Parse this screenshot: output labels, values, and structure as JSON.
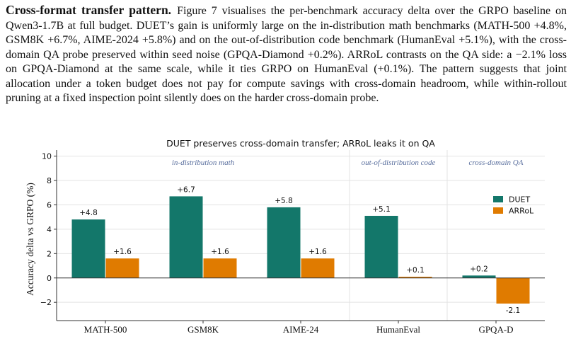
{
  "paragraph": {
    "heading": "Cross-format transfer pattern.",
    "body": "Figure 7 visualises the per-benchmark accuracy delta over the GRPO baseline on Qwen3-1.7B at full budget. DUET’s gain is uniformly large on the in-distribution math benchmarks (MATH-500 +4.8%, GSM8K +6.7%, AIME-2024 +5.8%) and on the out-of-distribution code benchmark (HumanEval +5.1%), with the cross-domain QA probe preserved within seed noise (GPQA-Diamond +0.2%). ARRoL contrasts on the QA side: a −2.1% loss on GPQA-Diamond at the same scale, while it ties GRPO on HumanEval (+0.1%). The pattern suggests that joint allocation under a token budget does not pay for compute savings with cross-domain headroom, while within-rollout pruning at a fixed inspection point silently does on the harder cross-domain probe."
  },
  "colors": {
    "duet": "#13776a",
    "arrol": "#e07b00",
    "region_label": "#5a6f9e"
  },
  "chart_data": {
    "type": "bar",
    "title": "DUET preserves cross-domain transfer; ARRoL leaks it on QA",
    "xlabel": "",
    "ylabel": "Accuracy delta vs GRPO (%)",
    "categories": [
      "MATH-500",
      "GSM8K",
      "AIME-24",
      "HumanEval",
      "GPQA-D"
    ],
    "series": [
      {
        "name": "DUET",
        "values": [
          4.8,
          6.7,
          5.8,
          5.1,
          0.2
        ],
        "labels": [
          "+4.8",
          "+6.7",
          "+5.8",
          "+5.1",
          "+0.2"
        ]
      },
      {
        "name": "ARRoL",
        "values": [
          1.6,
          1.6,
          1.6,
          0.1,
          -2.1
        ],
        "labels": [
          "+1.6",
          "+1.6",
          "+1.6",
          "+0.1",
          "-2.1"
        ]
      }
    ],
    "ylim": [
      -3.5,
      10.5
    ],
    "yticks": [
      -2,
      0,
      2,
      4,
      6,
      8,
      10
    ],
    "ytick_labels": [
      "−2",
      "0",
      "2",
      "4",
      "6",
      "8",
      "10"
    ],
    "grid": true,
    "legend": "right",
    "regions": [
      {
        "label": "in-distribution math",
        "from": 0,
        "to": 2
      },
      {
        "label": "out-of-distribution code",
        "from": 3,
        "to": 3
      },
      {
        "label": "cross-domain QA",
        "from": 4,
        "to": 4
      }
    ]
  }
}
